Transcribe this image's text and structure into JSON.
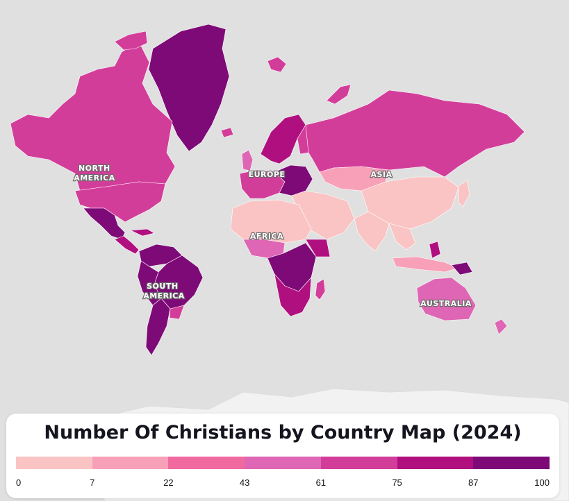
{
  "map": {
    "title": "Number Of Christians by Country Map (2024)",
    "region_labels": [
      {
        "id": "north-america",
        "lines": [
          "NORTH",
          "AMERICA"
        ]
      },
      {
        "id": "europe",
        "lines": [
          "EUROPE"
        ]
      },
      {
        "id": "asia",
        "lines": [
          "ASIA"
        ]
      },
      {
        "id": "africa",
        "lines": [
          "AFRICA"
        ]
      },
      {
        "id": "south-america",
        "lines": [
          "SOUTH",
          "AMERICA"
        ]
      },
      {
        "id": "australia",
        "lines": [
          "AUSTRALIA"
        ]
      }
    ],
    "legend": {
      "ticks": [
        "0",
        "7",
        "22",
        "43",
        "61",
        "75",
        "87",
        "100"
      ],
      "colors": [
        "#fbc4c4",
        "#f8a0b8",
        "#f06aa0",
        "#de66b4",
        "#d33d9a",
        "#b0107f",
        "#7e0a78"
      ]
    },
    "colors": {
      "ocean": "#e0e0e0",
      "antarctica": "#f2f2f2",
      "border": "#ffffff"
    }
  }
}
